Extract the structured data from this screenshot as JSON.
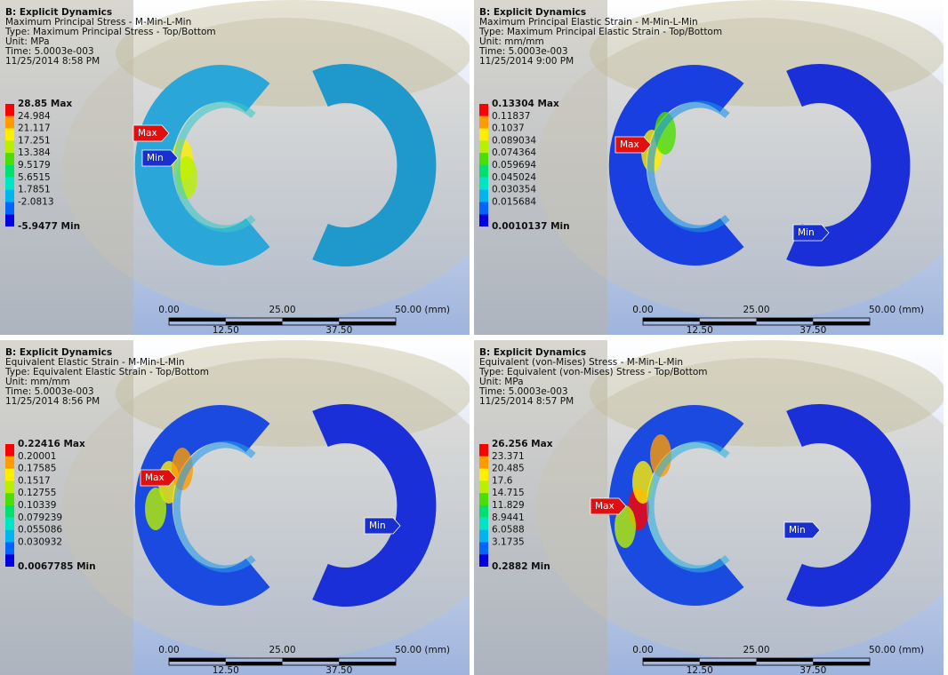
{
  "legend_colors": [
    "#ff0000",
    "#ff9a00",
    "#ffee00",
    "#b8f000",
    "#4cde00",
    "#00e070",
    "#00e5c8",
    "#00b4f0",
    "#0064ff",
    "#0000e0"
  ],
  "panels": [
    {
      "header": [
        "B: Explicit Dynamics",
        "Maximum Principal Stress - M-Min-L-Min",
        "Type: Maximum Principal Stress - Top/Bottom",
        "Unit: MPa",
        "Time: 5.0003e-003",
        "11/25/2014 8:58 PM"
      ],
      "legend": [
        "28.85 Max",
        "24.984",
        "21.117",
        "17.251",
        "13.384",
        "9.5179",
        "5.6515",
        "1.7851",
        "-2.0813",
        "-5.9477 Min"
      ],
      "max": "Max",
      "min": "Min",
      "scale": [
        "0.00",
        "25.00",
        "50.00 (mm)",
        "12.50",
        "37.50"
      ]
    },
    {
      "header": [
        "B: Explicit Dynamics",
        "Maximum Principal Elastic Strain - M-Min-L-Min",
        "Type: Maximum Principal Elastic Strain - Top/Bottom",
        "Unit: mm/mm",
        "Time: 5.0003e-003",
        "11/25/2014 9:00 PM"
      ],
      "legend": [
        "0.13304 Max",
        "0.11837",
        "0.1037",
        "0.089034",
        "0.074364",
        "0.059694",
        "0.045024",
        "0.030354",
        "0.015684",
        "0.0010137 Min"
      ],
      "max": "Max",
      "min": "Min",
      "scale": [
        "0.00",
        "25.00",
        "50.00 (mm)",
        "12.50",
        "37.50"
      ]
    },
    {
      "header": [
        "B: Explicit Dynamics",
        "Equivalent Elastic Strain - M-Min-L-Min",
        "Type: Equivalent Elastic Strain - Top/Bottom",
        "Unit: mm/mm",
        "Time: 5.0003e-003",
        "11/25/2014 8:56 PM"
      ],
      "legend": [
        "0.22416 Max",
        "0.20001",
        "0.17585",
        "0.1517",
        "0.12755",
        "0.10339",
        "0.079239",
        "0.055086",
        "0.030932",
        "0.0067785 Min"
      ],
      "max": "Max",
      "min": "Min",
      "scale": [
        "0.00",
        "25.00",
        "50.00 (mm)",
        "12.50",
        "37.50"
      ]
    },
    {
      "header": [
        "B: Explicit Dynamics",
        "Equivalent (von-Mises) Stress - M-Min-L-Min",
        "Type: Equivalent (von-Mises) Stress - Top/Bottom",
        "Unit: MPa",
        "Time: 5.0003e-003",
        "11/25/2014 8:57 PM"
      ],
      "legend": [
        "26.256 Max",
        "23.371",
        "20.485",
        "17.6",
        "14.715",
        "11.829",
        "8.9441",
        "6.0588",
        "3.1735",
        "0.2882 Min"
      ],
      "max": "Max",
      "min": "Min",
      "scale": [
        "0.00",
        "25.00",
        "50.00 (mm)",
        "12.50",
        "37.50"
      ]
    }
  ]
}
